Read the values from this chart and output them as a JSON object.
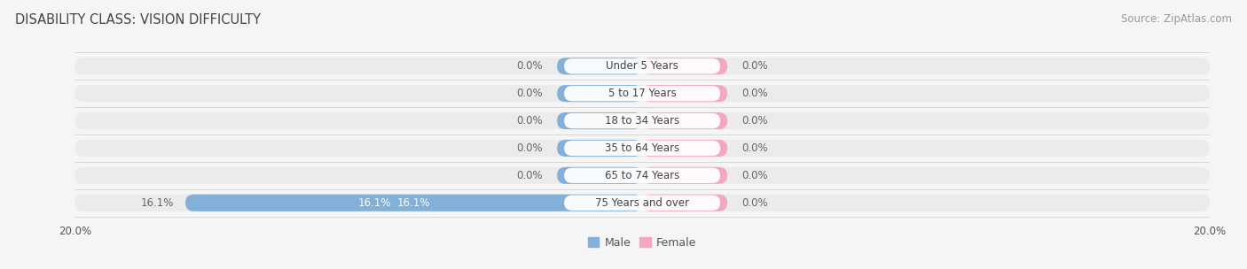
{
  "title": "DISABILITY CLASS: VISION DIFFICULTY",
  "source": "Source: ZipAtlas.com",
  "categories": [
    "Under 5 Years",
    "5 to 17 Years",
    "18 to 34 Years",
    "35 to 64 Years",
    "65 to 74 Years",
    "75 Years and over"
  ],
  "male_values": [
    0.0,
    0.0,
    0.0,
    0.0,
    0.0,
    16.1
  ],
  "female_values": [
    0.0,
    0.0,
    0.0,
    0.0,
    0.0,
    0.0
  ],
  "male_color": "#82b0d8",
  "female_color": "#f4a8be",
  "row_bg_color": "#ebebeb",
  "fig_bg_color": "#f5f5f5",
  "xlim": 20.0,
  "min_stub": 3.0,
  "title_fontsize": 10.5,
  "label_fontsize": 8.5,
  "value_fontsize": 8.5,
  "source_fontsize": 8.5,
  "legend_fontsize": 9,
  "axis_label_fontsize": 8.5
}
